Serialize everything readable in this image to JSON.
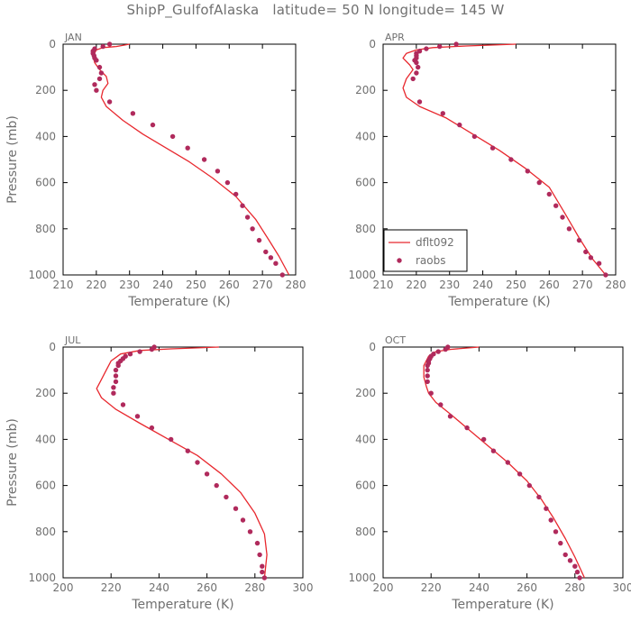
{
  "title": "ShipP_GulfofAlaska   latitude= 50 N longitude= 145 W",
  "colors": {
    "model": "#e8282e",
    "obs": "#b02a5c",
    "axis": "#000000",
    "text": "#707070"
  },
  "legend": {
    "model_label": "dflt092",
    "obs_label": "raobs"
  },
  "chart_data": [
    {
      "type": "line",
      "panel": "JAN",
      "xlabel": "Temperature (K)",
      "ylabel": "Pressure (mb)",
      "xlim": [
        210,
        280
      ],
      "ylim": [
        1000,
        0
      ],
      "xticks": [
        210,
        220,
        230,
        240,
        250,
        260,
        270,
        280
      ],
      "yticks": [
        0,
        200,
        400,
        600,
        800,
        1000
      ],
      "series": [
        {
          "name": "dflt092",
          "kind": "line",
          "x": [
            230,
            226,
            222,
            220,
            219,
            219.5,
            221,
            223,
            223.5,
            222,
            221.5,
            223,
            228,
            234,
            241,
            248,
            255,
            262,
            268,
            272,
            275,
            278
          ],
          "y": [
            0,
            10,
            15,
            25,
            50,
            80,
            110,
            140,
            170,
            200,
            230,
            270,
            330,
            390,
            450,
            510,
            580,
            660,
            760,
            850,
            920,
            1000
          ]
        },
        {
          "name": "raobs",
          "kind": "scatter",
          "x": [
            224,
            222,
            219.5,
            219,
            219,
            219.3,
            219.5,
            220,
            221,
            221.5,
            221,
            219.5,
            220,
            224,
            231,
            237,
            243,
            247.5,
            252.5,
            256.5,
            259.5,
            262,
            264,
            265.5,
            267,
            269,
            271,
            272.5,
            274,
            276
          ],
          "y": [
            0,
            10,
            20,
            30,
            40,
            50,
            60,
            70,
            100,
            125,
            150,
            175,
            200,
            250,
            300,
            350,
            400,
            450,
            500,
            550,
            600,
            650,
            700,
            750,
            800,
            850,
            900,
            925,
            950,
            1000
          ]
        }
      ]
    },
    {
      "type": "line",
      "panel": "APR",
      "xlabel": "Temperature (K)",
      "ylabel": "",
      "xlim": [
        210,
        280
      ],
      "ylim": [
        1000,
        0
      ],
      "xticks": [
        210,
        220,
        230,
        240,
        250,
        260,
        270,
        280
      ],
      "yticks": [
        0,
        200,
        400,
        600,
        800,
        1000
      ],
      "legend_position": "bottom-left",
      "series": [
        {
          "name": "dflt092",
          "kind": "line",
          "x": [
            250,
            235,
            225,
            220,
            217,
            216,
            218,
            219,
            217,
            216,
            217,
            221,
            229,
            237,
            245,
            253,
            260,
            265,
            269,
            273,
            277
          ],
          "y": [
            0,
            8,
            15,
            25,
            40,
            60,
            90,
            110,
            150,
            190,
            230,
            270,
            320,
            390,
            460,
            540,
            620,
            740,
            840,
            930,
            1000
          ]
        },
        {
          "name": "raobs",
          "kind": "scatter",
          "x": [
            232,
            227,
            223,
            221,
            220,
            220,
            220,
            219.5,
            220,
            220.5,
            220,
            219,
            221,
            228,
            233,
            237.5,
            243,
            248.5,
            253.5,
            257,
            260,
            262,
            264,
            266,
            269,
            271,
            272.5,
            275,
            277
          ],
          "y": [
            0,
            10,
            20,
            30,
            40,
            50,
            60,
            70,
            80,
            100,
            125,
            150,
            250,
            300,
            350,
            400,
            450,
            500,
            550,
            600,
            650,
            700,
            750,
            800,
            850,
            900,
            925,
            950,
            1000
          ]
        }
      ]
    },
    {
      "type": "line",
      "panel": "JUL",
      "xlabel": "Temperature (K)",
      "ylabel": "Pressure (mb)",
      "xlim": [
        200,
        300
      ],
      "ylim": [
        1000,
        0
      ],
      "xticks": [
        200,
        220,
        240,
        260,
        280,
        300
      ],
      "yticks": [
        0,
        200,
        400,
        600,
        800,
        1000
      ],
      "series": [
        {
          "name": "dflt092",
          "kind": "line",
          "x": [
            265,
            245,
            232,
            224,
            220,
            218,
            216,
            214,
            216,
            222,
            232,
            244,
            256,
            266,
            274,
            280,
            284,
            285,
            284
          ],
          "y": [
            0,
            8,
            15,
            30,
            60,
            100,
            140,
            180,
            220,
            270,
            330,
            400,
            470,
            550,
            630,
            720,
            810,
            900,
            1000
          ]
        },
        {
          "name": "raobs",
          "kind": "scatter",
          "x": [
            238,
            237,
            232,
            228,
            226,
            225,
            224,
            223,
            223,
            222,
            222,
            222,
            221,
            221,
            225,
            231,
            237,
            245,
            252,
            256,
            260,
            264,
            268,
            272,
            275,
            278,
            281,
            282,
            283,
            283,
            284
          ],
          "y": [
            0,
            10,
            20,
            30,
            40,
            50,
            60,
            70,
            80,
            100,
            125,
            150,
            175,
            200,
            250,
            300,
            350,
            400,
            450,
            500,
            550,
            600,
            650,
            700,
            750,
            800,
            850,
            900,
            950,
            975,
            1000
          ]
        }
      ]
    },
    {
      "type": "line",
      "panel": "OCT",
      "xlabel": "Temperature (K)",
      "ylabel": "",
      "xlim": [
        200,
        300
      ],
      "ylim": [
        1000,
        0
      ],
      "xticks": [
        200,
        220,
        240,
        260,
        280,
        300
      ],
      "yticks": [
        0,
        200,
        400,
        600,
        800,
        1000
      ],
      "series": [
        {
          "name": "dflt092",
          "kind": "line",
          "x": [
            240,
            228,
            222,
            219,
            217,
            217,
            218,
            219,
            222,
            228,
            236,
            244,
            252,
            260,
            266,
            271,
            276,
            280,
            284
          ],
          "y": [
            0,
            10,
            20,
            40,
            80,
            130,
            170,
            200,
            240,
            290,
            360,
            430,
            500,
            580,
            660,
            740,
            830,
            910,
            1000
          ]
        },
        {
          "name": "raobs",
          "kind": "scatter",
          "x": [
            227,
            226,
            223,
            221,
            220,
            219.5,
            219,
            219,
            218.5,
            218.5,
            218.5,
            218.5,
            220,
            224,
            228,
            235,
            242,
            246,
            252,
            257,
            261,
            265,
            268,
            270,
            272,
            274,
            276,
            278,
            280,
            281,
            282
          ],
          "y": [
            0,
            10,
            20,
            30,
            40,
            50,
            60,
            70,
            80,
            100,
            125,
            150,
            200,
            250,
            300,
            350,
            400,
            450,
            500,
            550,
            600,
            650,
            700,
            750,
            800,
            850,
            900,
            925,
            950,
            975,
            1000
          ]
        }
      ]
    }
  ]
}
